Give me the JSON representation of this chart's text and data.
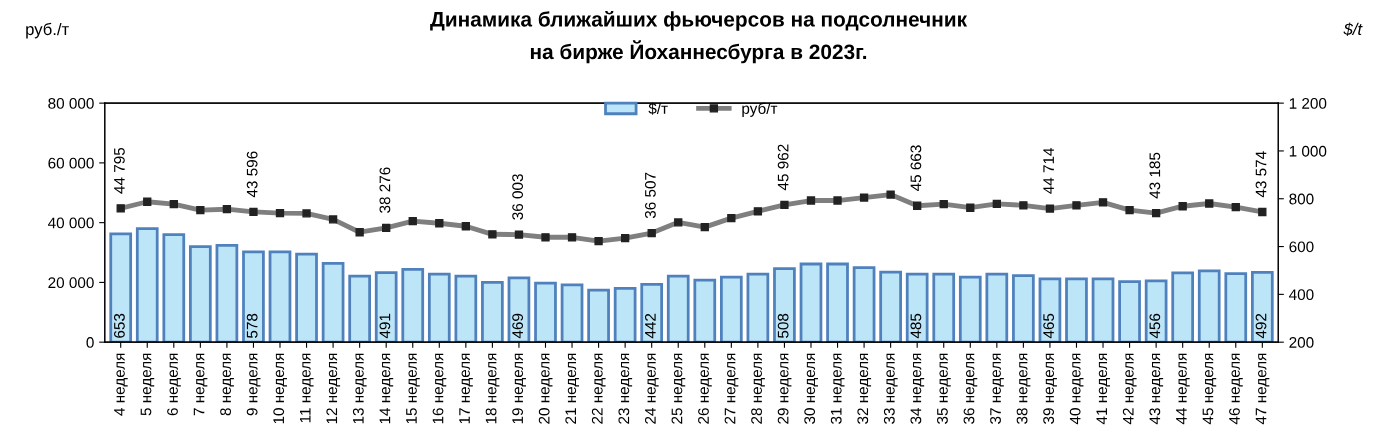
{
  "chart_data": {
    "type": "bar",
    "title": "Динамика ближайших фьючерсов на подсолнечник\nна бирже Йоханнесбурга в 2023г.",
    "ylabel": "руб./т",
    "y2label": "$/t",
    "categories": [
      "4 неделя",
      "5 неделя",
      "6 неделя",
      "7 неделя",
      "8 неделя",
      "9 неделя",
      "10 неделя",
      "11 неделя",
      "12 неделя",
      "13 неделя",
      "14 неделя",
      "15 неделя",
      "16 неделя",
      "17 неделя",
      "18 неделя",
      "19 неделя",
      "20 неделя",
      "21 неделя",
      "22 неделя",
      "23 неделя",
      "24 неделя",
      "25 неделя",
      "26 неделя",
      "27 неделя",
      "28 неделя",
      "29 неделя",
      "30 неделя",
      "31 неделя",
      "32 неделя",
      "33 неделя",
      "34 неделя",
      "35 неделя",
      "36 неделя",
      "37 неделя",
      "38 неделя",
      "39 неделя",
      "40 неделя",
      "41 неделя",
      "42 неделя",
      "43 неделя",
      "44 неделя",
      "45 неделя",
      "46 неделя",
      "47 неделя"
    ],
    "series": [
      {
        "name": "$/т",
        "axis": "y2",
        "color": "#bde5f8",
        "values": [
          653,
          675,
          650,
          600,
          605,
          578,
          578,
          568,
          530,
          476,
          491,
          505,
          485,
          476,
          450,
          469,
          447,
          440,
          418,
          425,
          442,
          476,
          460,
          472,
          485,
          508,
          527,
          527,
          512,
          493,
          485,
          485,
          472,
          485,
          478,
          465,
          465,
          465,
          453,
          456,
          490,
          498,
          487,
          492
        ],
        "value_labels": [
          "653",
          null,
          null,
          null,
          null,
          "578",
          null,
          null,
          null,
          null,
          "491",
          null,
          null,
          null,
          null,
          "469",
          null,
          null,
          null,
          null,
          "442",
          null,
          null,
          null,
          null,
          "508",
          null,
          null,
          null,
          null,
          "485",
          null,
          null,
          null,
          null,
          "465",
          null,
          null,
          null,
          "456",
          null,
          null,
          null,
          "492"
        ]
      },
      {
        "name": "руб/т",
        "type": "line",
        "axis": "y",
        "color": "#7f7f7f",
        "marker": "square",
        "line_style": "solid",
        "values": [
          44795,
          47000,
          46200,
          44200,
          44500,
          43596,
          43200,
          43100,
          41100,
          36800,
          38276,
          40500,
          39800,
          38800,
          36100,
          36003,
          35100,
          35100,
          33800,
          34800,
          36507,
          40100,
          38500,
          41500,
          43800,
          45962,
          47400,
          47400,
          48400,
          49400,
          45663,
          46200,
          45000,
          46300,
          45800,
          44714,
          45800,
          46800,
          44200,
          43185,
          45500,
          46400,
          45200,
          43574
        ],
        "value_labels": [
          "44 795",
          null,
          null,
          null,
          null,
          "43 596",
          null,
          null,
          null,
          null,
          "38 276",
          null,
          null,
          null,
          null,
          "36 003",
          null,
          null,
          null,
          null,
          "36 507",
          null,
          null,
          null,
          null,
          "45 962",
          null,
          null,
          null,
          null,
          "45 663",
          null,
          null,
          null,
          null,
          "44 714",
          null,
          null,
          null,
          "43 185",
          null,
          null,
          null,
          "43 574"
        ]
      }
    ],
    "ylim": [
      0,
      80000
    ],
    "yticks": [
      {
        "value": 0,
        "label": "0"
      },
      {
        "value": 20000,
        "label": "20 000"
      },
      {
        "value": 40000,
        "label": "40 000"
      },
      {
        "value": 60000,
        "label": "60 000"
      },
      {
        "value": 80000,
        "label": "80 000"
      }
    ],
    "y2lim": [
      200,
      1200
    ],
    "y2ticks": [
      200,
      400,
      600,
      800,
      {
        "value": 1000,
        "label": "1 000"
      },
      {
        "value": 1200,
        "label": "1 200"
      }
    ],
    "grid": false,
    "legend": "top"
  }
}
